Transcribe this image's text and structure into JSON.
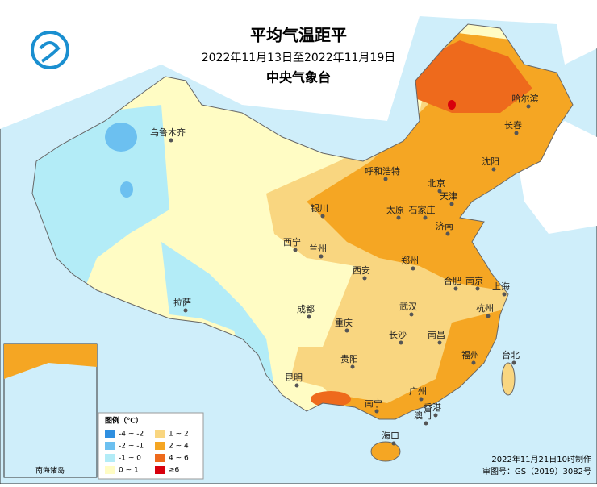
{
  "header": {
    "title": "平均气温距平",
    "subtitle": "2022年11月13日至2022年11月19日",
    "organization": "中央气象台"
  },
  "legend": {
    "title": "图例（℃）",
    "items": [
      {
        "label": "-4 ~ -2",
        "color": "#2f8fe0"
      },
      {
        "label": "-2 ~ -1",
        "color": "#6cc0f0"
      },
      {
        "label": "-1 ~ 0",
        "color": "#b3ecf7"
      },
      {
        "label": "0 ~ 1",
        "color": "#fffcc4"
      },
      {
        "label": "1 ~ 2",
        "color": "#f9d680"
      },
      {
        "label": "2 ~ 4",
        "color": "#f5a623"
      },
      {
        "label": "4 ~ 6",
        "color": "#ee6a1c"
      },
      {
        "label": "≥6",
        "color": "#d8000c"
      }
    ]
  },
  "cities": [
    "乌鲁木齐",
    "哈尔滨",
    "长春",
    "沈阳",
    "呼和浩特",
    "北京",
    "天津",
    "太原",
    "石家庄",
    "银川",
    "济南",
    "西宁",
    "兰州",
    "郑州",
    "西安",
    "合肥",
    "南京",
    "上海",
    "拉萨",
    "成都",
    "武汉",
    "杭州",
    "重庆",
    "长沙",
    "南昌",
    "福州",
    "台北",
    "贵阳",
    "昆明",
    "南宁",
    "广州",
    "香港",
    "澳门",
    "海口"
  ],
  "inset": {
    "label": "南海诸岛"
  },
  "footer": {
    "made": "2022年11月21日10时制作",
    "approval": "审图号：GS（2019）3082号"
  }
}
